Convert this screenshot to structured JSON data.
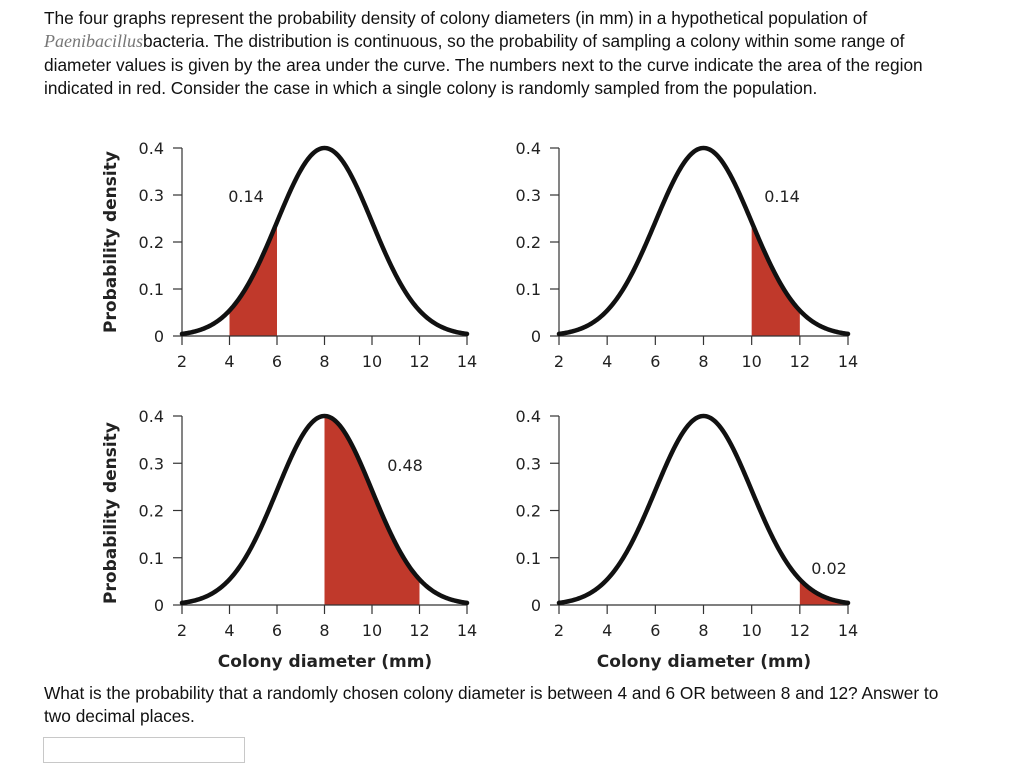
{
  "intro": {
    "part1": "The four graphs represent the probability density of colony diameters (in mm) in a hypothetical population of ",
    "genus": "Paenibacillus",
    "part2": "bacteria. The distribution is continuous, so the probability of sampling a colony within some range of diameter values is given by the area under the curve. The numbers next to the curve indicate the area of the region indicated in red. Consider the case in which a single colony is randomly sampled from the population."
  },
  "question": "What is the probability that a randomly chosen colony diameter is between 4 and 6 OR between 8 and 12? Answer to two decimal places.",
  "answer_input": {
    "value": ""
  },
  "colors": {
    "shade": "#c0392b",
    "curve": "#111111"
  },
  "chart_data": [
    {
      "type": "area",
      "curve": "normal",
      "mean": 8,
      "peak_density": 0.4,
      "shaded_range": [
        4,
        6
      ],
      "area_label": "0.14",
      "ylabel": "Probability density",
      "xlabel": "",
      "xlim": [
        2,
        14
      ],
      "ylim": [
        0,
        0.4
      ],
      "xticks": [
        "2",
        "4",
        "6",
        "8",
        "10",
        "12",
        "14"
      ],
      "yticks": [
        "0",
        "0.1",
        "0.2",
        "0.3",
        "0.4"
      ]
    },
    {
      "type": "area",
      "curve": "normal",
      "mean": 8,
      "peak_density": 0.4,
      "shaded_range": [
        10,
        12
      ],
      "area_label": "0.14",
      "ylabel": "",
      "xlabel": "",
      "xlim": [
        2,
        14
      ],
      "ylim": [
        0,
        0.4
      ],
      "xticks": [
        "2",
        "4",
        "6",
        "8",
        "10",
        "12",
        "14"
      ],
      "yticks": [
        "0",
        "0.1",
        "0.2",
        "0.3",
        "0.4"
      ]
    },
    {
      "type": "area",
      "curve": "normal",
      "mean": 8,
      "peak_density": 0.4,
      "shaded_range": [
        8,
        12
      ],
      "area_label": "0.48",
      "ylabel": "Probability density",
      "xlabel": "Colony diameter (mm)",
      "xlim": [
        2,
        14
      ],
      "ylim": [
        0,
        0.4
      ],
      "xticks": [
        "2",
        "4",
        "6",
        "8",
        "10",
        "12",
        "14"
      ],
      "yticks": [
        "0",
        "0.1",
        "0.2",
        "0.3",
        "0.4"
      ]
    },
    {
      "type": "area",
      "curve": "normal",
      "mean": 8,
      "peak_density": 0.4,
      "shaded_range": [
        12,
        14
      ],
      "area_label": "0.02",
      "ylabel": "",
      "xlabel": "Colony diameter (mm)",
      "xlim": [
        2,
        14
      ],
      "ylim": [
        0,
        0.4
      ],
      "xticks": [
        "2",
        "4",
        "6",
        "8",
        "10",
        "12",
        "14"
      ],
      "yticks": [
        "0",
        "0.1",
        "0.2",
        "0.3",
        "0.4"
      ]
    }
  ]
}
